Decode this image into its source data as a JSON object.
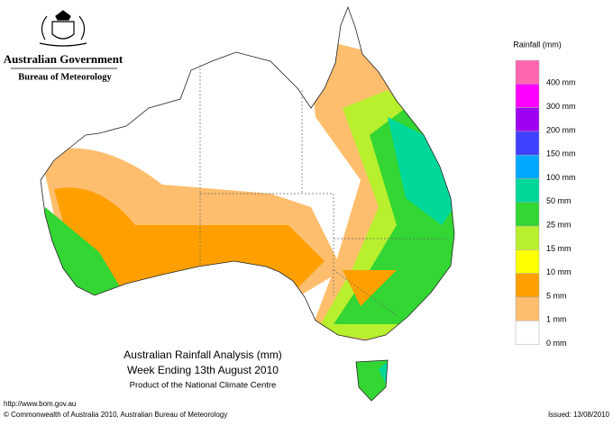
{
  "header": {
    "agency": "Australian Government",
    "bureau": "Bureau of Meteorology"
  },
  "legend": {
    "title": "Rainfall (mm)",
    "entries": [
      {
        "label": "400 mm",
        "color": "#ff66b0"
      },
      {
        "label": "300 mm",
        "color": "#ff00ff"
      },
      {
        "label": "200 mm",
        "color": "#a000f0"
      },
      {
        "label": "150 mm",
        "color": "#4040ff"
      },
      {
        "label": "100 mm",
        "color": "#00a8ff"
      },
      {
        "label": "50 mm",
        "color": "#00d89a"
      },
      {
        "label": "25 mm",
        "color": "#33d633"
      },
      {
        "label": "15 mm",
        "color": "#b8f02e"
      },
      {
        "label": "10 mm",
        "color": "#ffff00"
      },
      {
        "label": "5 mm",
        "color": "#ffa000"
      },
      {
        "label": "1 mm",
        "color": "#ffbe6e"
      },
      {
        "label": "0 mm",
        "color": "#ffffff"
      }
    ]
  },
  "title": {
    "lines": [
      "Australian Rainfall Analysis (mm)",
      "Week Ending 13th August 2010",
      "Product of the National Climate Centre"
    ]
  },
  "footer": {
    "url": "http://www.bom.gov.au",
    "copyright": "© Commonwealth of Australia 2010, Australian Bureau of Meteorology",
    "issued": "Issued: 13/08/2010"
  }
}
